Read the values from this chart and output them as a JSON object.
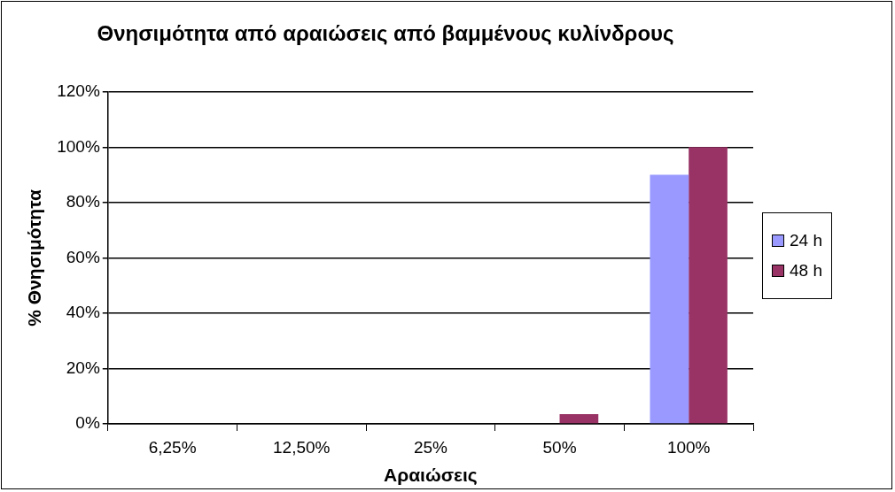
{
  "chart_data": {
    "type": "bar",
    "title": "Θνησιμότητα από αραιώσεις από βαμμένους κυλίνδρους",
    "xlabel": "Αραιώσεις",
    "ylabel": "% Θνησιμότητα",
    "categories": [
      "6,25%",
      "12,50%",
      "25%",
      "50%",
      "100%"
    ],
    "series": [
      {
        "name": "24 h",
        "color": "#9999ff",
        "values": [
          0,
          0,
          0,
          0,
          90
        ]
      },
      {
        "name": "48 h",
        "color": "#993366",
        "values": [
          0,
          0,
          0,
          3.5,
          100
        ]
      }
    ],
    "ylim": [
      0,
      120
    ],
    "yticks": [
      {
        "value": 0,
        "label": "0%"
      },
      {
        "value": 20,
        "label": "20%"
      },
      {
        "value": 40,
        "label": "40%"
      },
      {
        "value": 60,
        "label": "60%"
      },
      {
        "value": 80,
        "label": "80%"
      },
      {
        "value": 100,
        "label": "100%"
      },
      {
        "value": 120,
        "label": "120%"
      }
    ],
    "grid": "y",
    "legend": "right"
  }
}
